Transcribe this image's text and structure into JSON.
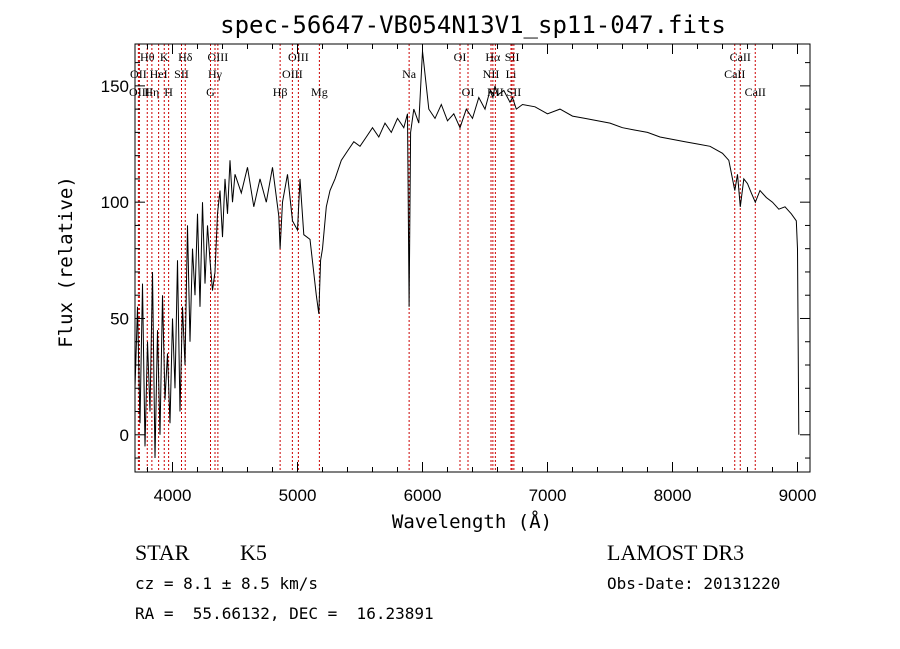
{
  "chart_data": {
    "type": "line",
    "title": "spec-56647-VB054N13V1_sp11-047.fits",
    "xlabel": "Wavelength (Å)",
    "ylabel": "Flux (relative)",
    "xlim": [
      3700,
      9100
    ],
    "ylim": [
      -16,
      168
    ],
    "xticks": [
      4000,
      5000,
      6000,
      7000,
      8000,
      9000
    ],
    "yticks": [
      0,
      50,
      100,
      150
    ],
    "series": [
      {
        "name": "flux",
        "x": [
          3700,
          3720,
          3740,
          3760,
          3780,
          3800,
          3820,
          3840,
          3860,
          3880,
          3900,
          3920,
          3940,
          3960,
          3980,
          4000,
          4020,
          4040,
          4060,
          4080,
          4100,
          4120,
          4140,
          4160,
          4180,
          4200,
          4220,
          4240,
          4260,
          4280,
          4300,
          4320,
          4340,
          4360,
          4380,
          4400,
          4420,
          4440,
          4460,
          4480,
          4500,
          4550,
          4600,
          4650,
          4700,
          4750,
          4800,
          4850,
          4861,
          4880,
          4920,
          4960,
          5000,
          5020,
          5050,
          5100,
          5150,
          5170,
          5185,
          5200,
          5230,
          5260,
          5300,
          5350,
          5400,
          5450,
          5500,
          5550,
          5600,
          5650,
          5700,
          5750,
          5800,
          5850,
          5880,
          5893,
          5905,
          5930,
          5970,
          6000,
          6050,
          6100,
          6150,
          6200,
          6250,
          6300,
          6350,
          6400,
          6450,
          6500,
          6540,
          6563,
          6580,
          6600,
          6650,
          6700,
          6720,
          6750,
          6800,
          6900,
          7000,
          7100,
          7200,
          7300,
          7400,
          7500,
          7600,
          7700,
          7800,
          7900,
          8000,
          8100,
          8200,
          8300,
          8400,
          8450,
          8498,
          8520,
          8542,
          8570,
          8600,
          8630,
          8662,
          8700,
          8750,
          8800,
          8850,
          8900,
          8950,
          8990,
          9000,
          9010
        ],
        "values": [
          20,
          55,
          5,
          65,
          -5,
          40,
          10,
          70,
          -10,
          45,
          0,
          60,
          15,
          35,
          5,
          50,
          20,
          75,
          10,
          55,
          30,
          90,
          40,
          80,
          60,
          95,
          55,
          100,
          65,
          90,
          75,
          62,
          70,
          95,
          105,
          85,
          110,
          95,
          118,
          100,
          112,
          104,
          115,
          98,
          110,
          100,
          115,
          94,
          80,
          100,
          112,
          92,
          88,
          110,
          86,
          84,
          60,
          52,
          75,
          80,
          98,
          105,
          110,
          118,
          122,
          126,
          124,
          128,
          132,
          128,
          134,
          130,
          136,
          132,
          138,
          55,
          130,
          140,
          134,
          165,
          140,
          136,
          142,
          135,
          138,
          132,
          140,
          136,
          145,
          140,
          148,
          145,
          150,
          146,
          148,
          143,
          145,
          140,
          142,
          141,
          138,
          140,
          137,
          136,
          135,
          134,
          132,
          131,
          130,
          128,
          127,
          126,
          125,
          124,
          121,
          118,
          105,
          112,
          98,
          110,
          108,
          104,
          100,
          105,
          102,
          100,
          97,
          98,
          95,
          92,
          80,
          0
        ]
      }
    ],
    "line_markers": [
      {
        "label": "Hθ",
        "x": 3798,
        "row": 0
      },
      {
        "label": "OII",
        "x": 3727,
        "row": 1
      },
      {
        "label": "OIII",
        "x": 3735,
        "row": 2
      },
      {
        "label": "Hη",
        "x": 3835,
        "row": 2
      },
      {
        "label": "HeI",
        "x": 3889,
        "row": 1
      },
      {
        "label": "K",
        "x": 3934,
        "row": 0
      },
      {
        "label": "H",
        "x": 3969,
        "row": 2
      },
      {
        "label": "SII",
        "x": 4072,
        "row": 1
      },
      {
        "label": "Hδ",
        "x": 4102,
        "row": 0
      },
      {
        "label": "OIII",
        "x": 4363,
        "row": 0
      },
      {
        "label": "Hγ",
        "x": 4340,
        "row": 1
      },
      {
        "label": "G",
        "x": 4304,
        "row": 2
      },
      {
        "label": "Hβ",
        "x": 4861,
        "row": 2
      },
      {
        "label": "OIII",
        "x": 5007,
        "row": 0
      },
      {
        "label": "OIII",
        "x": 4959,
        "row": 1
      },
      {
        "label": "Mg",
        "x": 5175,
        "row": 2
      },
      {
        "label": "Na",
        "x": 5893,
        "row": 1
      },
      {
        "label": "OI",
        "x": 6300,
        "row": 0
      },
      {
        "label": "OI",
        "x": 6364,
        "row": 2
      },
      {
        "label": "Hα",
        "x": 6563,
        "row": 0
      },
      {
        "label": "NII",
        "x": 6548,
        "row": 1
      },
      {
        "label": "NII",
        "x": 6583,
        "row": 2
      },
      {
        "label": "SII",
        "x": 6717,
        "row": 0
      },
      {
        "label": "Li",
        "x": 6708,
        "row": 1
      },
      {
        "label": "SII",
        "x": 6731,
        "row": 2
      },
      {
        "label": "CaII",
        "x": 8542,
        "row": 0
      },
      {
        "label": "CaII",
        "x": 8498,
        "row": 1
      },
      {
        "label": "CaII",
        "x": 8662,
        "row": 2
      }
    ]
  },
  "info": {
    "class": "STAR",
    "subclass": "K5",
    "survey": "LAMOST DR3",
    "cz": "cz = 8.1 ± 8.5 km/s",
    "obs_date": "Obs-Date: 20131220",
    "coords": "RA =  55.66132, DEC =  16.23891"
  },
  "colors": {
    "line_marker": "#cc0000",
    "spectrum": "#000000"
  }
}
